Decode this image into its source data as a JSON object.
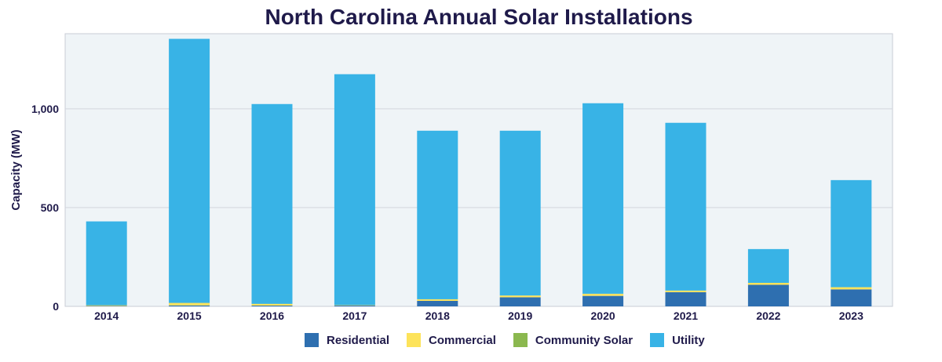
{
  "chart_data": {
    "type": "bar",
    "stacked": true,
    "title": "North Carolina Annual Solar Installations",
    "xlabel": "",
    "ylabel": "Capacity (MW)",
    "ylim": [
      0,
      1380
    ],
    "yticks": [
      0,
      500,
      1000
    ],
    "ytick_labels": [
      "0",
      "500",
      "1,000"
    ],
    "grid": true,
    "legend_position": "bottom",
    "categories": [
      "2014",
      "2015",
      "2016",
      "2017",
      "2018",
      "2019",
      "2020",
      "2021",
      "2022",
      "2023"
    ],
    "series": [
      {
        "name": "Residential",
        "color": "#2e6fb0",
        "values": [
          2,
          5,
          4,
          4,
          28,
          46,
          53,
          72,
          109,
          86
        ]
      },
      {
        "name": "Commercial",
        "color": "#fde35a",
        "values": [
          3,
          12,
          8,
          2,
          8,
          9,
          10,
          8,
          10,
          11
        ]
      },
      {
        "name": "Community Solar",
        "color": "#8bb84f",
        "values": [
          1,
          1,
          1,
          0,
          0,
          0,
          1,
          0,
          0,
          0
        ]
      },
      {
        "name": "Utility",
        "color": "#38b3e6",
        "values": [
          424,
          1336,
          1011,
          1169,
          853,
          834,
          964,
          849,
          171,
          542
        ]
      }
    ]
  }
}
